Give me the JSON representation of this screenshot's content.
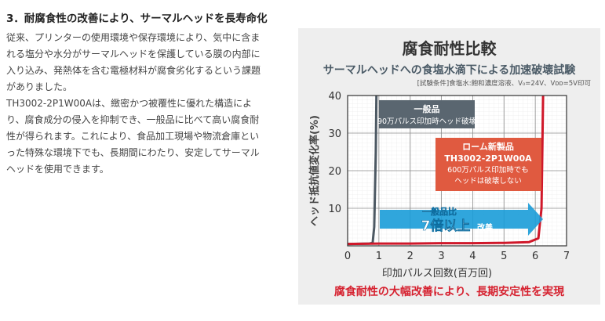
{
  "article": {
    "heading": "3．耐腐食性の改善により、サーマルヘッドを長寿命化",
    "paragraph1_lines": [
      "従来、プリンターの使用環境や保存環境により、気中に含ま",
      "れる塩分や水分がサーマルヘッドを保護している膜の内部に",
      "入り込み、発熱体を含む電極材料が腐食劣化するという課題",
      "がありました。"
    ],
    "paragraph2_lines": [
      "TH3002-2P1W00Aは、緻密かつ被覆性に優れた構造によ",
      "り、腐食成分の侵入を抑制でき、一般品に比べて高い腐食耐",
      "性が得られます。これにより、食品加工現場や物流倉庫とい",
      "った特殊な環境下でも、長期間にわたり、安定してサーマル",
      "ヘッドを使用できます。"
    ]
  },
  "figure": {
    "title": "腐食耐性比較",
    "subtitle": "サーマルヘッドへの食塩水滴下による加速破壊試験",
    "conditions": "[試験条件]食塩水:飽和濃度溶液、V₀=24V、Vᴅᴅ=5V印可",
    "footer": "腐食耐性の大幅改善により、長期安定性を実現"
  },
  "chart_data": {
    "type": "line",
    "xlabel": "印加パルス回数(百万回)",
    "ylabel": "ヘッド抵抗値変化率(%)",
    "xlim": [
      0,
      7
    ],
    "ylim": [
      0,
      40
    ],
    "x_ticks": [
      "0",
      "1",
      "2",
      "3",
      "4",
      "5",
      "6",
      "7"
    ],
    "y_ticks": [
      "10",
      "20",
      "30",
      "40"
    ],
    "grid": true,
    "series": [
      {
        "name": "一般品",
        "color": "#4d5963",
        "x": [
          0,
          0.7,
          0.8,
          0.85,
          0.9,
          0.92
        ],
        "y": [
          0.5,
          0.6,
          0.8,
          5,
          25,
          40
        ]
      },
      {
        "name": "ローム新製品",
        "color": "#d0182a",
        "x": [
          0,
          1,
          2,
          3,
          4,
          5,
          5.8,
          6.1,
          6.2,
          6.25
        ],
        "y": [
          0.5,
          0.6,
          0.6,
          0.7,
          0.7,
          0.8,
          1,
          2,
          10,
          40
        ]
      }
    ],
    "annotations": {
      "general_title": "一般品",
      "general_detail": "90万パルス印加時ヘッド破壊",
      "rohm_title": "ローム新製品",
      "rohm_model": "TH3002-2P1W00A",
      "rohm_detail1": "600万パルス印加時でも",
      "rohm_detail2": "ヘッドは破壊しない",
      "arrow_label_top": "一般品比",
      "arrow_label_main": "7倍以上",
      "arrow_label_suffix": "改善"
    },
    "colors": {
      "general_box": "#5a6670",
      "rohm_box": "#e05a40",
      "arrow": "#1a9cd8",
      "footer": "#d62230"
    }
  }
}
